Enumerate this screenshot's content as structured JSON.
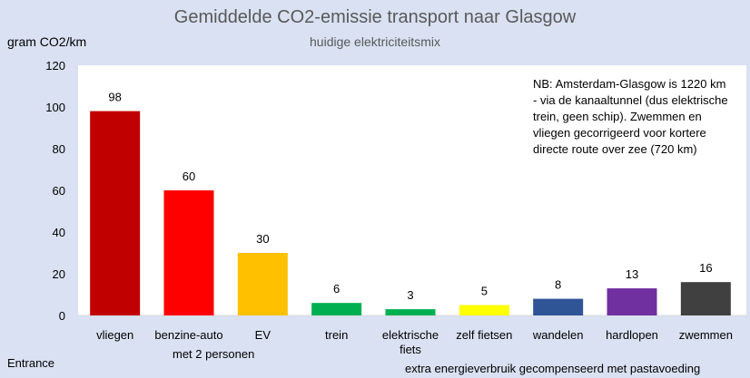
{
  "chart_data": {
    "type": "bar",
    "title": "Gemiddelde CO2-emissie transport naar Glasgow",
    "subtitle": "huidige elektriciteitsmix",
    "ylabel": "gram CO2/km",
    "xlabel": "",
    "ylim": [
      0,
      120
    ],
    "yticks": [
      0,
      20,
      40,
      60,
      80,
      100,
      120
    ],
    "grid": false,
    "categories": [
      [
        "vliegen"
      ],
      [
        "benzine-auto"
      ],
      [
        "EV"
      ],
      [
        "trein"
      ],
      [
        "elektrische",
        "fiets"
      ],
      [
        "zelf fietsen"
      ],
      [
        "wandelen"
      ],
      [
        "hardlopen"
      ],
      [
        "zwemmen"
      ]
    ],
    "values": [
      98,
      60,
      30,
      6,
      3,
      5,
      8,
      13,
      16
    ],
    "bar_colors": [
      "#c00000",
      "#ff0000",
      "#ffc000",
      "#00b050",
      "#00b050",
      "#ffff00",
      "#2f5597",
      "#7030a0",
      "#404040"
    ],
    "group_note": "met 2 personen"
  },
  "note": "NB: Amsterdam-Glasgow is 1220 km - via de kanaaltunnel (dus elektrische trein, geen schip). Zwemmen en vliegen gecorrigeerd voor kortere directe route over zee (720 km)",
  "footer_left": "Entrance",
  "footer_right": "extra energieverbruik gecompenseerd met pastavoeding",
  "colors": {
    "background": "#d9e1f2",
    "plot_background": "#ffffff",
    "title_text": "#595959"
  }
}
